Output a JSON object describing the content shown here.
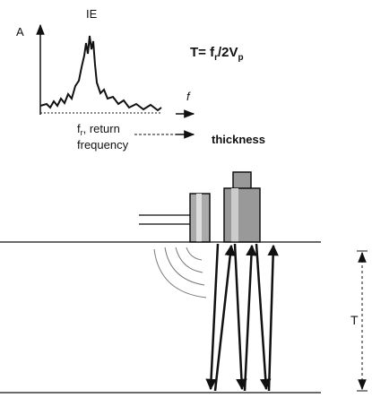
{
  "spectrum": {
    "title": "IE",
    "y_axis": "A",
    "x_axis": "f"
  },
  "formula": {
    "lhs": "T= f",
    "sub1": "r",
    "mid": "/2V",
    "sub2": "p"
  },
  "return_label": {
    "symbol": "f",
    "sub": "r",
    "rest": ", return",
    "line2": "frequency"
  },
  "thickness_label": "thickness",
  "dimension_label": "T"
}
